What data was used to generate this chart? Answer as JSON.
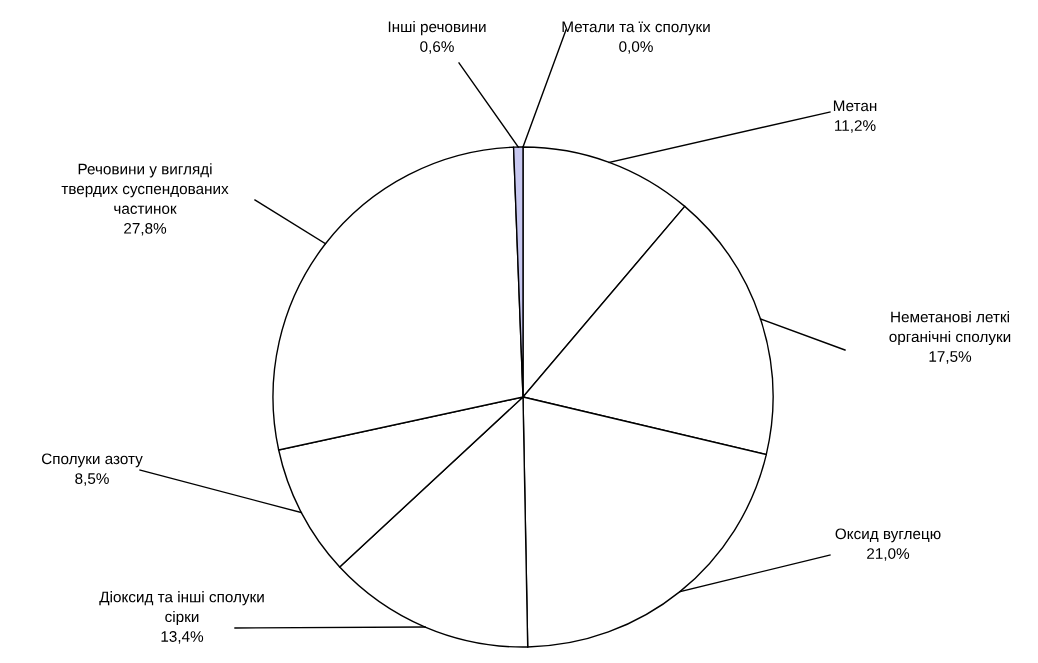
{
  "chart_data": {
    "type": "pie",
    "categories": [
      "Метали та їх сполуки",
      "Метан",
      "Неметанові леткі органічні сполуки",
      "Оксид вуглецю",
      "Діоксид та інші сполуки сірки",
      "Сполуки азоту",
      "Речовини у вигляді твердих суспендованих частинок",
      "Інші речовини"
    ],
    "values": [
      0.0,
      11.2,
      17.5,
      21.0,
      13.4,
      8.5,
      27.8,
      0.6
    ],
    "value_labels": [
      "0,0%",
      "11,2%",
      "17,5%",
      "21,0%",
      "13,4%",
      "8,5%",
      "27,8%",
      "0,6%"
    ],
    "colors": [
      "#ffffff",
      "#ffffff",
      "#ffffff",
      "#ffffff",
      "#ffffff",
      "#ffffff",
      "#ffffff",
      "#c8c8f0"
    ]
  }
}
